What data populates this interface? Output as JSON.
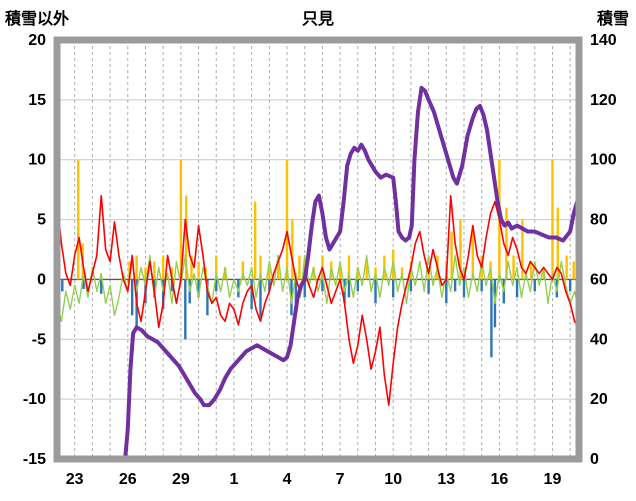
{
  "header": {
    "left_axis_label": "積雪以外",
    "title": "只見",
    "right_axis_label": "積雪"
  },
  "chart_data": {
    "type": "line",
    "title": "只見",
    "xlabel": "",
    "ylabel_left": "積雪以外",
    "ylabel_right": "積雪",
    "grid": "on",
    "legend": "none",
    "colors": {
      "red": "#FF0000",
      "green": "#92D050",
      "orange": "#FFC000",
      "blue": "#2E75B6",
      "purple": "#7030A0",
      "frame": "#9B9B9B",
      "grid_h": "#C9C9C9",
      "grid_v": "#ADADAD",
      "zero_line": "#595959"
    },
    "left_axis": {
      "label": "積雪以外",
      "min": -15,
      "max": 20,
      "step": 5,
      "tick_values": [
        20,
        15,
        10,
        5,
        0,
        -5,
        -10,
        -15
      ],
      "tick_labels": [
        "20",
        "15",
        "10",
        "5",
        "0",
        "-5",
        "-10",
        "-15"
      ]
    },
    "right_axis": {
      "label": "積雪",
      "min": 0,
      "max": 140,
      "step": 20,
      "tick_values": [
        140,
        120,
        100,
        80,
        60,
        40,
        20,
        0
      ],
      "tick_labels": [
        "140",
        "120",
        "100",
        "80",
        "60",
        "40",
        "20",
        "0"
      ]
    },
    "x_axis": {
      "domain": [
        0,
        29.5
      ],
      "gridline_every": 1,
      "tick_positions": [
        1,
        4,
        7,
        10,
        13,
        16,
        19,
        22,
        25,
        28
      ],
      "tick_labels": [
        "23",
        "26",
        "29",
        "1",
        "4",
        "7",
        "10",
        "13",
        "16",
        "19"
      ]
    },
    "series": [
      {
        "name": "precipitation-orange-bars",
        "type": "bar",
        "axis": "left",
        "color": "#FFC000",
        "width": 2.4,
        "points": [
          [
            1.2,
            10
          ],
          [
            1.45,
            3
          ],
          [
            4.1,
            1.5
          ],
          [
            4.5,
            2
          ],
          [
            5,
            1
          ],
          [
            5.5,
            1.5
          ],
          [
            6,
            2
          ],
          [
            6.5,
            1
          ],
          [
            7,
            10
          ],
          [
            7.3,
            7
          ],
          [
            7.6,
            2
          ],
          [
            8,
            1.5
          ],
          [
            8.4,
            1
          ],
          [
            9,
            2
          ],
          [
            9.5,
            1
          ],
          [
            10.5,
            1.5
          ],
          [
            11.2,
            6.5
          ],
          [
            11.5,
            2
          ],
          [
            12,
            1
          ],
          [
            12.5,
            2
          ],
          [
            13,
            10
          ],
          [
            13.3,
            5
          ],
          [
            13.7,
            2
          ],
          [
            14,
            1.5
          ],
          [
            14.5,
            1
          ],
          [
            15,
            2
          ],
          [
            15.5,
            1.5
          ],
          [
            16,
            1
          ],
          [
            16.5,
            2
          ],
          [
            17,
            1
          ],
          [
            17.5,
            1.5
          ],
          [
            18,
            1
          ],
          [
            18.5,
            2
          ],
          [
            19,
            2.5
          ],
          [
            19.5,
            1
          ],
          [
            20,
            1.5
          ],
          [
            21,
            1
          ],
          [
            21.5,
            2
          ],
          [
            22,
            1.5
          ],
          [
            22.3,
            4
          ],
          [
            22.8,
            5
          ],
          [
            23.5,
            4.5
          ],
          [
            24,
            2
          ],
          [
            24.5,
            1.5
          ],
          [
            25,
            10
          ],
          [
            25.4,
            6
          ],
          [
            25.8,
            2
          ],
          [
            26.3,
            5
          ],
          [
            26.8,
            1.5
          ],
          [
            27.5,
            1
          ],
          [
            28,
            10
          ],
          [
            28.3,
            6
          ],
          [
            28.8,
            2
          ],
          [
            29.2,
            1.5
          ]
        ]
      },
      {
        "name": "blue-bars",
        "type": "bar",
        "axis": "left",
        "color": "#2E75B6",
        "width": 2.4,
        "points": [
          [
            0.3,
            -1
          ],
          [
            1.5,
            -0.8
          ],
          [
            2.5,
            -1.2
          ],
          [
            4.25,
            -3
          ],
          [
            4.5,
            -4.2
          ],
          [
            5,
            -2
          ],
          [
            5.5,
            -1.5
          ],
          [
            6,
            -2.5
          ],
          [
            6.5,
            -1
          ],
          [
            7.25,
            -5
          ],
          [
            7.5,
            -2
          ],
          [
            8,
            -1.5
          ],
          [
            8.5,
            -3
          ],
          [
            9,
            -1
          ],
          [
            10.25,
            -1.5
          ],
          [
            11,
            -2.5
          ],
          [
            11.5,
            -3.2
          ],
          [
            12,
            -1
          ],
          [
            13.25,
            -3
          ],
          [
            13.5,
            -2
          ],
          [
            14,
            -1.5
          ],
          [
            15,
            -1
          ],
          [
            16.25,
            -2
          ],
          [
            16.5,
            -1.5
          ],
          [
            17,
            -1
          ],
          [
            18,
            -2
          ],
          [
            19,
            -1.5
          ],
          [
            20,
            -1
          ],
          [
            21,
            -1.2
          ],
          [
            22,
            -2
          ],
          [
            22.5,
            -1
          ],
          [
            23,
            -1.5
          ],
          [
            24,
            -1
          ],
          [
            24.55,
            -6.5
          ],
          [
            24.75,
            -4
          ],
          [
            25.25,
            -2
          ],
          [
            26,
            -1.5
          ],
          [
            27,
            -1
          ],
          [
            28.25,
            -1.5
          ],
          [
            29,
            -1
          ]
        ]
      },
      {
        "name": "green-line",
        "type": "line",
        "axis": "left",
        "color": "#92D050",
        "width": 1.4,
        "x_step": 0.25,
        "values": [
          -2,
          -3.5,
          -1,
          -2.5,
          -0.5,
          -2,
          0.5,
          -1.5,
          1,
          -1,
          0.5,
          -2,
          -0.5,
          -3,
          -1.5,
          0.5,
          -1,
          1.5,
          -1,
          1,
          -0.5,
          2,
          -1.5,
          1,
          -1,
          0.5,
          -2,
          1.5,
          -0.5,
          2,
          -1,
          0.5,
          -1.5,
          1,
          -0.5,
          -2,
          0.5,
          -1,
          1,
          -1.5,
          0,
          -1,
          0.5,
          -0.5,
          1,
          -1.5,
          0.5,
          -1,
          1.5,
          -0.5,
          2,
          -1,
          1,
          -2,
          0.5,
          -1.5,
          2,
          -0.5,
          1,
          -1,
          0.5,
          -2,
          1,
          -0.5,
          1.5,
          -1,
          0.5,
          -1.5,
          1,
          -0.5,
          2,
          -1,
          0.5,
          -1.5,
          1,
          -0.5,
          1.5,
          -1,
          0.5,
          -2,
          1,
          -0.5,
          1.5,
          -1,
          2,
          -0.5,
          1,
          -1.5,
          0.5,
          -1,
          2,
          -0.5,
          1,
          -1.5,
          0.5,
          -1,
          1.5,
          -0.5,
          1,
          -2,
          0.5,
          -1,
          1.5,
          -0.5,
          1,
          -1.5,
          0.5,
          -1,
          1.5,
          -0.5,
          1,
          -2,
          0.5,
          -1,
          1.5,
          -0.5,
          -2,
          -1,
          -2.5
        ]
      },
      {
        "name": "red-line",
        "type": "line",
        "axis": "left",
        "color": "#FF0000",
        "width": 1.6,
        "x_step": 0.25,
        "values": [
          6.5,
          3,
          0.5,
          -0.5,
          2,
          3.5,
          1,
          -1,
          0.5,
          2,
          7,
          2.5,
          1.5,
          4.8,
          2,
          0,
          -1,
          2,
          -2,
          -3.5,
          -1,
          1.5,
          -1,
          -4,
          -2,
          2,
          0,
          -2,
          0,
          5,
          2,
          1,
          4.5,
          2,
          -1,
          -2,
          -1.5,
          -3,
          -3.5,
          -2,
          -2.5,
          -3.8,
          -2,
          -1,
          -0.5,
          -2.5,
          -3.5,
          -2,
          -1,
          0.5,
          1.5,
          2.5,
          4,
          2,
          0,
          -1,
          0.5,
          -0.5,
          -1.5,
          0,
          1,
          -0.5,
          -2,
          -1,
          0,
          -2,
          -5,
          -7,
          -5.5,
          -3,
          -5,
          -7.5,
          -6,
          -4,
          -8,
          -10.5,
          -7,
          -4,
          -2,
          -0.5,
          1,
          3,
          4,
          2,
          0.5,
          2.5,
          1,
          -0.5,
          0,
          7,
          3,
          1,
          0,
          2,
          4.5,
          2,
          1,
          3.5,
          5.5,
          6.5,
          5,
          3,
          2,
          3.5,
          2.5,
          1,
          0.5,
          1.5,
          1,
          0.5,
          1,
          0.5,
          0,
          1,
          0.5,
          -1,
          -2,
          -3.5,
          -4
        ]
      },
      {
        "name": "snow-depth-purple-line",
        "type": "line",
        "axis": "right",
        "color": "#7030A0",
        "width": 4,
        "points": [
          [
            0,
            0
          ],
          [
            3.85,
            0
          ],
          [
            4.0,
            10
          ],
          [
            4.15,
            30
          ],
          [
            4.3,
            42
          ],
          [
            4.5,
            44
          ],
          [
            4.8,
            43
          ],
          [
            5.1,
            41
          ],
          [
            5.4,
            40
          ],
          [
            5.7,
            39
          ],
          [
            6,
            37
          ],
          [
            6.3,
            35
          ],
          [
            6.6,
            33
          ],
          [
            6.9,
            31
          ],
          [
            7.2,
            28
          ],
          [
            7.5,
            25
          ],
          [
            7.8,
            22
          ],
          [
            8.1,
            20
          ],
          [
            8.3,
            18
          ],
          [
            8.6,
            18
          ],
          [
            8.9,
            20
          ],
          [
            9.2,
            23
          ],
          [
            9.5,
            27
          ],
          [
            9.8,
            30
          ],
          [
            10.1,
            32
          ],
          [
            10.4,
            34
          ],
          [
            10.7,
            36
          ],
          [
            11,
            37
          ],
          [
            11.3,
            38
          ],
          [
            11.6,
            37
          ],
          [
            11.9,
            36
          ],
          [
            12.2,
            35
          ],
          [
            12.5,
            34
          ],
          [
            12.8,
            33
          ],
          [
            13,
            34
          ],
          [
            13.2,
            38
          ],
          [
            13.4,
            46
          ],
          [
            13.6,
            54
          ],
          [
            13.8,
            58
          ],
          [
            14,
            60
          ],
          [
            14.2,
            68
          ],
          [
            14.4,
            78
          ],
          [
            14.6,
            86
          ],
          [
            14.8,
            88
          ],
          [
            15,
            82
          ],
          [
            15.2,
            74
          ],
          [
            15.4,
            70
          ],
          [
            15.6,
            72
          ],
          [
            15.8,
            74
          ],
          [
            16,
            76
          ],
          [
            16.2,
            86
          ],
          [
            16.4,
            98
          ],
          [
            16.6,
            102
          ],
          [
            16.8,
            104
          ],
          [
            17,
            103
          ],
          [
            17.2,
            105
          ],
          [
            17.4,
            103
          ],
          [
            17.6,
            100
          ],
          [
            17.8,
            98
          ],
          [
            18,
            96
          ],
          [
            18.3,
            94
          ],
          [
            18.6,
            95
          ],
          [
            19,
            94
          ],
          [
            19.15,
            86
          ],
          [
            19.3,
            76
          ],
          [
            19.5,
            74
          ],
          [
            19.7,
            73
          ],
          [
            19.9,
            74
          ],
          [
            20.05,
            78
          ],
          [
            20.2,
            100
          ],
          [
            20.4,
            116
          ],
          [
            20.6,
            124
          ],
          [
            20.8,
            123
          ],
          [
            21,
            120
          ],
          [
            21.3,
            116
          ],
          [
            21.6,
            110
          ],
          [
            21.9,
            104
          ],
          [
            22.1,
            100
          ],
          [
            22.4,
            94
          ],
          [
            22.6,
            92
          ],
          [
            22.9,
            98
          ],
          [
            23.2,
            108
          ],
          [
            23.5,
            114
          ],
          [
            23.7,
            117
          ],
          [
            23.9,
            118
          ],
          [
            24.1,
            115
          ],
          [
            24.3,
            110
          ],
          [
            24.6,
            98
          ],
          [
            24.9,
            86
          ],
          [
            25.1,
            80
          ],
          [
            25.3,
            78
          ],
          [
            25.5,
            79
          ],
          [
            25.7,
            77
          ],
          [
            26,
            78
          ],
          [
            26.3,
            77
          ],
          [
            26.6,
            76
          ],
          [
            27,
            76
          ],
          [
            27.4,
            75
          ],
          [
            27.8,
            74
          ],
          [
            28.2,
            74
          ],
          [
            28.6,
            73
          ],
          [
            29,
            76
          ],
          [
            29.2,
            82
          ],
          [
            29.5,
            88
          ]
        ]
      }
    ]
  }
}
